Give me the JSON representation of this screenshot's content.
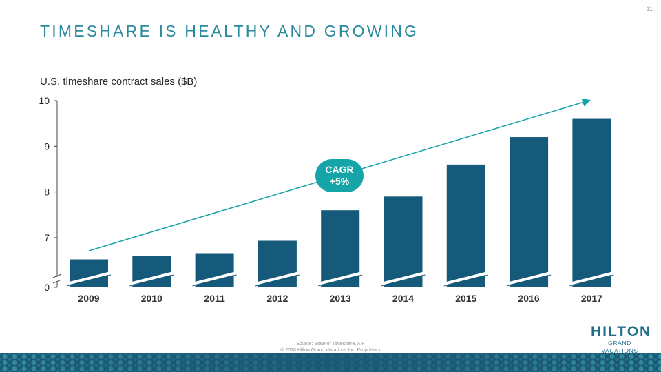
{
  "slide": {
    "page_number": "11",
    "title": "TIMESHARE IS HEALTHY AND GROWING",
    "source": "Source: State of Timeshare, AIF",
    "copyright": "© 2018 Hilton Grand Vacations Inc. Proprietary"
  },
  "logo": {
    "main": "HILTON",
    "sub": "GRAND VACATIONS"
  },
  "annotation": {
    "line1": "CAGR",
    "line2": "+5%"
  },
  "colors": {
    "title": "#2a8a9e",
    "bar": "#155a7a",
    "trend": "#17a2aa",
    "bubble": "#15a5a8"
  },
  "chart_data": {
    "type": "bar",
    "title": "U.S. timeshare contract sales ($B)",
    "categories": [
      "2009",
      "2010",
      "2011",
      "2012",
      "2013",
      "2014",
      "2015",
      "2016",
      "2017"
    ],
    "values": [
      6.3,
      6.4,
      6.5,
      6.9,
      7.6,
      7.9,
      8.6,
      9.2,
      9.6
    ],
    "yticks": [
      "0",
      "7",
      "8",
      "9",
      "10"
    ],
    "ylim": [
      6,
      10
    ],
    "axis_break": true,
    "trend_arrow": true,
    "grid": false,
    "legend": "none"
  }
}
